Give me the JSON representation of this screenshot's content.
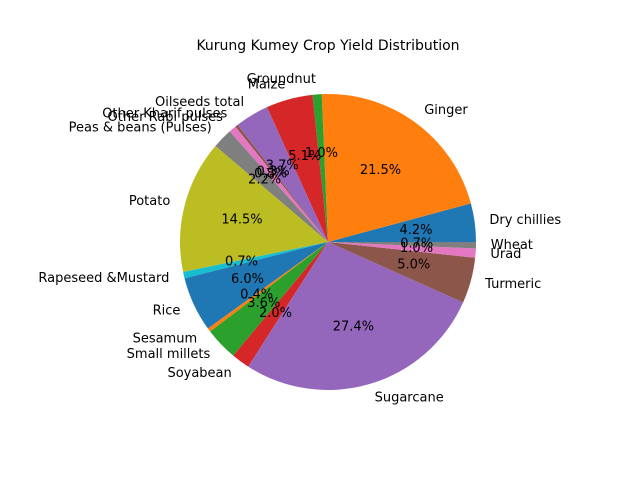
{
  "chart_data": {
    "type": "pie",
    "title": "Kurung Kumey Crop Yield Distribution",
    "start_angle_deg": 0,
    "direction": "counterclockwise",
    "slices": [
      {
        "label": "Dry chillies",
        "value": 4.2,
        "pct_label": "4.2%",
        "color": "#1f77b4"
      },
      {
        "label": "Ginger",
        "value": 21.5,
        "pct_label": "21.5%",
        "color": "#ff7f0e"
      },
      {
        "label": "Groundnut",
        "value": 1.0,
        "pct_label": "1.0%",
        "color": "#2ca02c"
      },
      {
        "label": "Maize",
        "value": 5.1,
        "pct_label": "5.1%",
        "color": "#d62728"
      },
      {
        "label": "Oilseeds total",
        "value": 3.7,
        "pct_label": "3.7%",
        "color": "#9467bd"
      },
      {
        "label": "Other Kharif pulses",
        "value": 0.3,
        "pct_label": "0.3%",
        "color": "#8c564b"
      },
      {
        "label": "Other Rabi pulses",
        "value": 0.8,
        "pct_label": "0.8%",
        "color": "#e377c2"
      },
      {
        "label": "Peas & beans (Pulses)",
        "value": 2.2,
        "pct_label": "2.2%",
        "color": "#7f7f7f"
      },
      {
        "label": "Potato",
        "value": 14.5,
        "pct_label": "14.5%",
        "color": "#bcbd22"
      },
      {
        "label": "Rapeseed &Mustard",
        "value": 0.7,
        "pct_label": "0.7%",
        "color": "#17becf"
      },
      {
        "label": "Rice",
        "value": 6.0,
        "pct_label": "6.0%",
        "color": "#1f77b4"
      },
      {
        "label": "Sesamum",
        "value": 0.4,
        "pct_label": "0.4%",
        "color": "#ff7f0e"
      },
      {
        "label": "Small millets",
        "value": 3.6,
        "pct_label": "3.6%",
        "color": "#2ca02c"
      },
      {
        "label": "Soyabean",
        "value": 2.0,
        "pct_label": "2.0%",
        "color": "#d62728"
      },
      {
        "label": "Sugarcane",
        "value": 27.4,
        "pct_label": "27.4%",
        "color": "#9467bd"
      },
      {
        "label": "Turmeric",
        "value": 5.0,
        "pct_label": "5.0%",
        "color": "#8c564b"
      },
      {
        "label": "Urad",
        "value": 1.0,
        "pct_label": "1.0%",
        "color": "#e377c2"
      },
      {
        "label": "Wheat",
        "value": 0.7,
        "pct_label": "0.7%",
        "color": "#7f7f7f"
      }
    ]
  }
}
